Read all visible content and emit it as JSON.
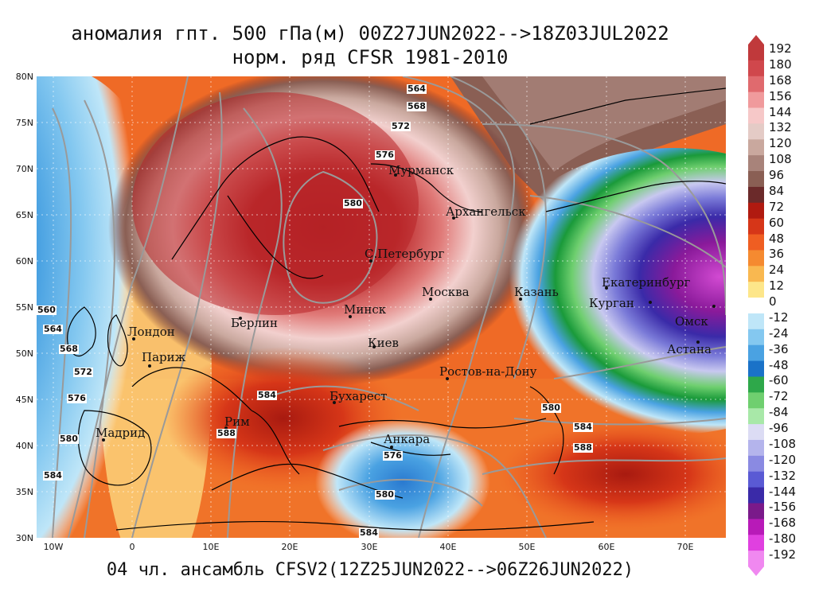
{
  "title_line1": "аномалия гпт. 500 гПа(м) 00Z27JUN2022-->18Z03JUL2022",
  "title_line2": "норм. ряд CFSR 1981-2010",
  "footer": "04 чл. ансамбль CFSV2(12Z25JUN2022-->06Z26JUN2022)",
  "lat_labels": [
    "80N",
    "75N",
    "70N",
    "65N",
    "60N",
    "55N",
    "50N",
    "45N",
    "40N",
    "35N",
    "30N"
  ],
  "lon_labels": [
    "10W",
    "0",
    "10E",
    "20E",
    "30E",
    "40E",
    "50E",
    "60E",
    "70E"
  ],
  "colorbar": {
    "labels": [
      "192",
      "180",
      "168",
      "156",
      "144",
      "132",
      "120",
      "108",
      "96",
      "84",
      "72",
      "60",
      "48",
      "36",
      "24",
      "12",
      "0",
      "-12",
      "-24",
      "-36",
      "-48",
      "-60",
      "-72",
      "-84",
      "-96",
      "-108",
      "-120",
      "-132",
      "-144",
      "-156",
      "-168",
      "-180",
      "-192"
    ],
    "colors": [
      "#c0393b",
      "#d0474c",
      "#e06a6e",
      "#f09a9c",
      "#f6c8c8",
      "#e4cbc6",
      "#c9a89e",
      "#a8837a",
      "#8a5f54",
      "#6b2a2a",
      "#b01a10",
      "#d63618",
      "#ef5e22",
      "#f58a30",
      "#f9b850",
      "#fde68a",
      "#ffffff",
      "#bfe6f8",
      "#84c8f0",
      "#4aa2e2",
      "#1a72c8",
      "#2ea84a",
      "#6fcf6f",
      "#a8e8a8",
      "#dcdcf4",
      "#b4b4ec",
      "#8a8ae2",
      "#5a5ad4",
      "#3a2aa8",
      "#7a1a8a",
      "#b81ab8",
      "#e040e0",
      "#f088f0"
    ]
  },
  "cities": [
    {
      "name": "Мурманск"
    },
    {
      "name": "Архангельск"
    },
    {
      "name": "С.Петербург"
    },
    {
      "name": "Москва"
    },
    {
      "name": "Казань"
    },
    {
      "name": "Екатеринбург"
    },
    {
      "name": "Курган"
    },
    {
      "name": "Омск"
    },
    {
      "name": "Астана"
    },
    {
      "name": "Минск"
    },
    {
      "name": "Киев"
    },
    {
      "name": "Берлин"
    },
    {
      "name": "Лондон"
    },
    {
      "name": "Париж"
    },
    {
      "name": "Мадрид"
    },
    {
      "name": "Рим"
    },
    {
      "name": "Бухарест"
    },
    {
      "name": "Ростов-на-Дону"
    },
    {
      "name": "Анкара"
    }
  ],
  "contour_labels": [
    "564",
    "568",
    "572",
    "576",
    "580",
    "560",
    "564",
    "568",
    "572",
    "576",
    "580",
    "584",
    "584",
    "588",
    "584",
    "580",
    "584",
    "588",
    "576",
    "580",
    "584"
  ]
}
